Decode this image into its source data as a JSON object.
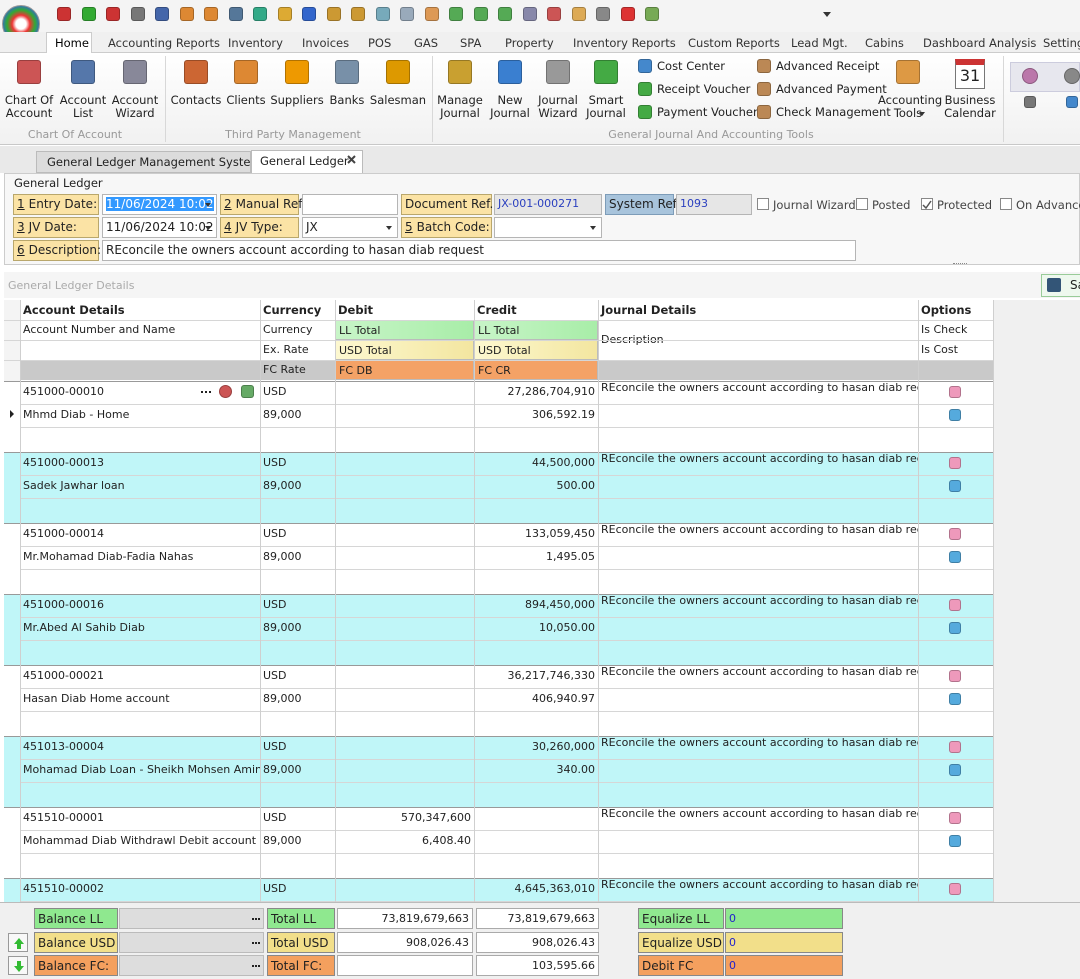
{
  "ribbon_tabs": [
    "Home",
    "Accounting Reports",
    "Inventory",
    "Invoices",
    "POS",
    "GAS",
    "SPA",
    "Property",
    "Inventory Reports",
    "Custom Reports",
    "Lead Mgt.",
    "Cabins",
    "Dashboard Analysis",
    "Settings"
  ],
  "ribbon_groups": [
    {
      "label": "Chart Of Account",
      "buttons": [
        "Chart Of Account",
        "Account List",
        "Account Wizard"
      ]
    },
    {
      "label": "Third Party Management",
      "buttons": [
        "Contacts",
        "Clients",
        "Suppliers",
        "Banks",
        "Salesman"
      ]
    },
    {
      "label": "General Journal And Accounting Tools",
      "buttons": [
        "Manage Journal",
        "New Journal",
        "Journal Wizard",
        "Smart Journal"
      ],
      "small_buttons": [
        "Cost Center",
        "Receipt Voucher",
        "Payment Voucher",
        "Advanced Receipt",
        "Advanced Payment",
        "Check Management"
      ],
      "buttons_after": [
        "Accounting Tools",
        "Business Calendar"
      ]
    }
  ],
  "calendar_day": "31",
  "document_tabs": [
    "General Ledger Management System",
    "General Ledger"
  ],
  "form": {
    "title": "General Ledger",
    "entry_date": {
      "num": "1",
      "label": "Entry Date:",
      "value": "11/06/2024 10:02"
    },
    "manual_ref": {
      "num": "2",
      "label": "Manual Ref:"
    },
    "document_ref": {
      "label": "Document Ref.",
      "value": "JX-001-000271"
    },
    "system_ref": {
      "label": "System Ref",
      "value": "1093"
    },
    "checkboxes": [
      {
        "label": "Journal Wizard",
        "checked": false
      },
      {
        "label": "Posted",
        "checked": false
      },
      {
        "label": "Protected",
        "checked": true
      },
      {
        "label": "On Advanced",
        "checked": false
      }
    ],
    "jv_date": {
      "num": "3",
      "label": "JV Date:",
      "value": "11/06/2024 10:02"
    },
    "jv_type": {
      "num": "4",
      "label": "JV Type:",
      "value": "JX"
    },
    "batch_code": {
      "num": "5",
      "label": "Batch Code:"
    },
    "description": {
      "num": "6",
      "label": "Description:",
      "value": "REconcile the owners account according to hasan diab request"
    }
  },
  "grid": {
    "caption": "General Ledger Details",
    "save": "Save",
    "headers": [
      "Account Details",
      "Currency",
      "Debit",
      "Credit",
      "Journal Details",
      "Options"
    ],
    "subheaders": {
      "account": "Account Number and Name",
      "currency": [
        "Currency",
        "Ex. Rate",
        "FC Rate"
      ],
      "debit": [
        "LL Total",
        "USD Total",
        "FC DB"
      ],
      "credit": [
        "LL Total",
        "USD Total",
        "FC CR"
      ],
      "journal": "Description",
      "options": [
        "Is Check",
        "Is Cost"
      ]
    },
    "rows": [
      {
        "account": "451000-00010",
        "name": "Mhmd Diab - Home",
        "currency": "USD",
        "rate": "89,000",
        "credit_ll": "27,286,704,910",
        "credit_usd": "306,592.19",
        "description": "REconcile the owners account according to hasan diab request"
      },
      {
        "account": "451000-00013",
        "name": "Sadek Jawhar loan",
        "currency": "USD",
        "rate": "89,000",
        "credit_ll": "44,500,000",
        "credit_usd": "500.00",
        "description": "REconcile the owners account according to hasan diab request"
      },
      {
        "account": "451000-00014",
        "name": "Mr.Mohamad Diab-Fadia Nahas",
        "currency": "USD",
        "rate": "89,000",
        "credit_ll": "133,059,450",
        "credit_usd": "1,495.05",
        "description": "REconcile the owners account according to hasan diab request"
      },
      {
        "account": "451000-00016",
        "name": "Mr.Abed Al Sahib Diab",
        "currency": "USD",
        "rate": "89,000",
        "credit_ll": "894,450,000",
        "credit_usd": "10,050.00",
        "description": "REconcile the owners account according to hasan diab request"
      },
      {
        "account": "451000-00021",
        "name": "Hasan Diab Home account",
        "currency": "USD",
        "rate": "89,000",
        "credit_ll": "36,217,746,330",
        "credit_usd": "406,940.97",
        "description": "REconcile the owners account according to hasan diab request"
      },
      {
        "account": "451013-00004",
        "name": "Mohamad Diab Loan - Sheikh Mohsen Amin",
        "currency": "USD",
        "rate": "89,000",
        "credit_ll": "30,260,000",
        "credit_usd": "340.00",
        "description": "REconcile the owners account according to hasan diab request"
      },
      {
        "account": "451510-00001",
        "name": "Mohammad Diab Withdrawl Debit account",
        "currency": "USD",
        "rate": "89,000",
        "debit_ll": "570,347,600",
        "debit_usd": "6,408.40",
        "description": "REconcile the owners account according to hasan diab request"
      },
      {
        "account": "451510-00002",
        "currency": "USD",
        "credit_ll": "4,645,363,010",
        "description": "REconcile the owners account according to hasan diab request"
      }
    ]
  },
  "footer": {
    "balance": [
      "Balance LL",
      "Balance USD",
      "Balance FC:"
    ],
    "totals": [
      {
        "label": "Total LL",
        "debit": "73,819,679,663",
        "credit": "73,819,679,663"
      },
      {
        "label": "Total USD",
        "debit": "908,026.43",
        "credit": "908,026.43"
      },
      {
        "label": "Total FC:",
        "credit": "103,595.66"
      }
    ],
    "equalize": [
      {
        "label": "Equalize LL",
        "value": "0"
      },
      {
        "label": "Equalize USD",
        "value": "0"
      },
      {
        "label": "Debit FC",
        "value": "0"
      }
    ]
  }
}
